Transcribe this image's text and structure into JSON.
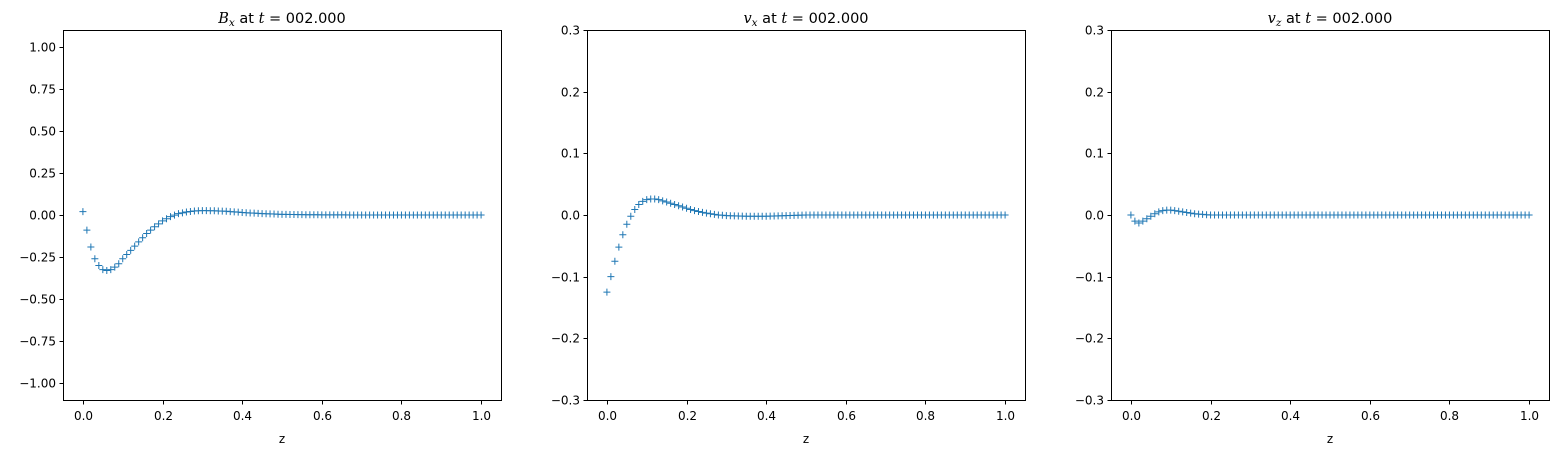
{
  "figure": {
    "marker_color": "#1f77b4",
    "marker": "plus"
  },
  "chart_data": [
    {
      "type": "scatter",
      "title": {
        "sym": "B",
        "sub": "x",
        "rest": " at ",
        "t": "t",
        "eq": " = 002.000"
      },
      "xlabel": "z",
      "ylabel": "",
      "xlim": [
        -0.05,
        1.05
      ],
      "ylim": [
        -1.1,
        1.1
      ],
      "xticks": [
        0.0,
        0.2,
        0.4,
        0.6,
        0.8,
        1.0
      ],
      "xtick_labels": [
        "0.0",
        "0.2",
        "0.4",
        "0.6",
        "0.8",
        "1.0"
      ],
      "yticks": [
        -1.0,
        -0.75,
        -0.5,
        -0.25,
        0.0,
        0.25,
        0.5,
        0.75,
        1.0
      ],
      "ytick_labels": [
        "−1.00",
        "−0.75",
        "−0.50",
        "−0.25",
        "0.00",
        "0.25",
        "0.50",
        "0.75",
        "1.00"
      ],
      "grid": false,
      "legend": "none",
      "series": [
        {
          "x": [
            0.0,
            0.01,
            0.02,
            0.03,
            0.04,
            0.05,
            0.06,
            0.07,
            0.08,
            0.09,
            0.1,
            0.12,
            0.14,
            0.16,
            0.18,
            0.2,
            0.22,
            0.24,
            0.26,
            0.28,
            0.3,
            0.33,
            0.36,
            0.4,
            0.45,
            0.5,
            0.55,
            0.6,
            0.7,
            0.8,
            0.9,
            1.0
          ],
          "y": [
            0.02,
            -0.09,
            -0.19,
            -0.26,
            -0.3,
            -0.325,
            -0.33,
            -0.325,
            -0.31,
            -0.29,
            -0.26,
            -0.21,
            -0.16,
            -0.11,
            -0.07,
            -0.035,
            -0.01,
            0.008,
            0.018,
            0.024,
            0.026,
            0.025,
            0.022,
            0.015,
            0.008,
            0.004,
            0.002,
            0.001,
            0.0,
            0.0,
            0.0,
            0.0
          ]
        }
      ]
    },
    {
      "type": "scatter",
      "title": {
        "sym": "v",
        "sub": "x",
        "rest": " at ",
        "t": "t",
        "eq": " = 002.000"
      },
      "xlabel": "z",
      "ylabel": "",
      "xlim": [
        -0.05,
        1.05
      ],
      "ylim": [
        -0.3,
        0.3
      ],
      "xticks": [
        0.0,
        0.2,
        0.4,
        0.6,
        0.8,
        1.0
      ],
      "xtick_labels": [
        "0.0",
        "0.2",
        "0.4",
        "0.6",
        "0.8",
        "1.0"
      ],
      "yticks": [
        -0.3,
        -0.2,
        -0.1,
        0.0,
        0.1,
        0.2,
        0.3
      ],
      "ytick_labels": [
        "−0.3",
        "−0.2",
        "−0.1",
        "0.0",
        "0.1",
        "0.2",
        "0.3"
      ],
      "grid": false,
      "legend": "none",
      "series": [
        {
          "x": [
            0.0,
            0.01,
            0.02,
            0.03,
            0.04,
            0.05,
            0.06,
            0.07,
            0.08,
            0.09,
            0.1,
            0.11,
            0.12,
            0.13,
            0.14,
            0.16,
            0.18,
            0.2,
            0.22,
            0.25,
            0.28,
            0.3,
            0.35,
            0.4,
            0.45,
            0.5,
            0.6,
            0.7,
            0.8,
            0.9,
            1.0
          ],
          "y": [
            -0.125,
            -0.1,
            -0.075,
            -0.052,
            -0.032,
            -0.015,
            -0.002,
            0.009,
            0.017,
            0.022,
            0.025,
            0.026,
            0.026,
            0.025,
            0.023,
            0.019,
            0.015,
            0.011,
            0.007,
            0.003,
            0.0,
            -0.001,
            -0.002,
            -0.002,
            -0.001,
            0.0,
            0.0,
            0.0,
            0.0,
            0.0,
            0.0
          ]
        }
      ]
    },
    {
      "type": "scatter",
      "title": {
        "sym": "v",
        "sub": "z",
        "rest": " at ",
        "t": "t",
        "eq": " = 002.000"
      },
      "xlabel": "z",
      "ylabel": "",
      "xlim": [
        -0.05,
        1.05
      ],
      "ylim": [
        -0.3,
        0.3
      ],
      "xticks": [
        0.0,
        0.2,
        0.4,
        0.6,
        0.8,
        1.0
      ],
      "xtick_labels": [
        "0.0",
        "0.2",
        "0.4",
        "0.6",
        "0.8",
        "1.0"
      ],
      "yticks": [
        -0.3,
        -0.2,
        -0.1,
        0.0,
        0.1,
        0.2,
        0.3
      ],
      "ytick_labels": [
        "−0.3",
        "−0.2",
        "−0.1",
        "0.0",
        "0.1",
        "0.2",
        "0.3"
      ],
      "grid": false,
      "legend": "none",
      "series": [
        {
          "x": [
            0.0,
            0.01,
            0.02,
            0.03,
            0.04,
            0.05,
            0.06,
            0.07,
            0.08,
            0.09,
            0.1,
            0.11,
            0.12,
            0.14,
            0.16,
            0.18,
            0.2,
            0.25,
            0.3,
            0.4,
            0.5,
            0.6,
            0.7,
            0.8,
            0.9,
            1.0
          ],
          "y": [
            0.0,
            -0.01,
            -0.013,
            -0.01,
            -0.006,
            -0.002,
            0.002,
            0.005,
            0.007,
            0.008,
            0.008,
            0.007,
            0.006,
            0.004,
            0.002,
            0.001,
            0.0,
            0.0,
            0.0,
            0.0,
            0.0,
            0.0,
            0.0,
            0.0,
            0.0,
            0.0
          ]
        }
      ]
    }
  ]
}
